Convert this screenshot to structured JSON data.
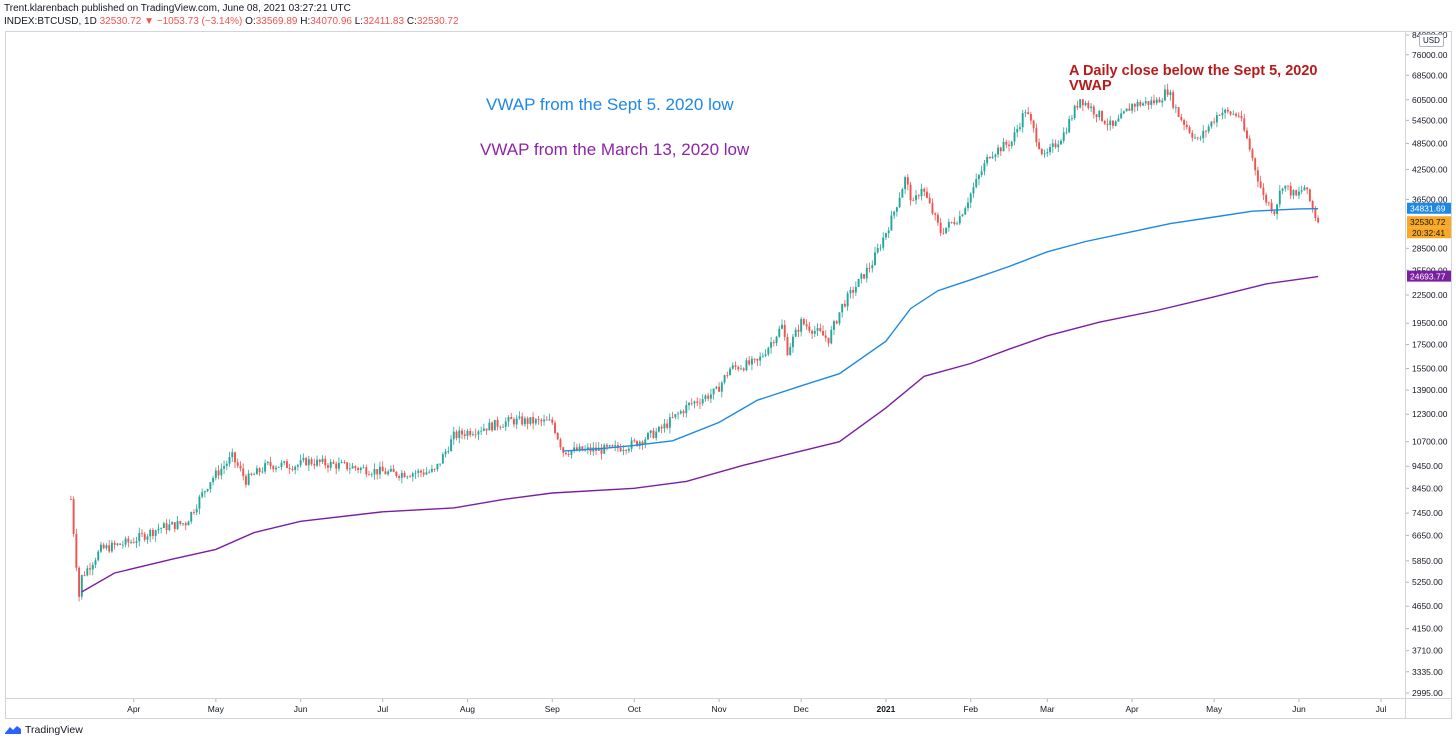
{
  "header": {
    "line1": "Trent.klarenbach published on TradingView.com, June 08, 2021 03:27:21 UTC",
    "symbol": "INDEX:BTCUSD, 1D",
    "last": "32530.72",
    "change": "−1053.73 (−3.14%)",
    "open_label": "O:",
    "open": "33569.89",
    "high_label": "H:",
    "high": "34070.96",
    "low_label": "L:",
    "low": "32411.83",
    "close_label": "C:",
    "close": "32530.72"
  },
  "footer": {
    "brand": "TradingView"
  },
  "currency_badge": "USD",
  "colors": {
    "up": "#26a69a",
    "down": "#ef5350",
    "vwap_sept": "#1e88e5",
    "vwap_march": "#7b1fa2",
    "annot_blue": "#1e88e5",
    "annot_purple": "#8e24aa",
    "annot_red": "#b71c1c",
    "last_price_bg": "#f9a825"
  },
  "chart_data": {
    "type": "candlestick",
    "scale": "log",
    "title": "",
    "ylim": [
      2995,
      84000
    ],
    "x_ticks": [
      "Apr",
      "May",
      "Jun",
      "Jul",
      "Aug",
      "Sep",
      "Oct",
      "Nov",
      "Dec",
      "2021",
      "Feb",
      "Mar",
      "Apr",
      "May",
      "Jun",
      "Jul"
    ],
    "y_ticks": [
      "84000.00",
      "76000.00",
      "68500.00",
      "60500.00",
      "54500.00",
      "48500.00",
      "42500.00",
      "36500.00",
      "28500.00",
      "25500.00",
      "22500.00",
      "19500.00",
      "17500.00",
      "15500.00",
      "13900.00",
      "12300.00",
      "10700.00",
      "9450.00",
      "8450.00",
      "7450.00",
      "6650.00",
      "5850.00",
      "5250.00",
      "4650.00",
      "4150.00",
      "3710.00",
      "3335.00",
      "2995.00"
    ],
    "price_labels": [
      {
        "value": 34831.69,
        "text": "34831.69",
        "color": "#1e88e5"
      },
      {
        "value": 32530.72,
        "text": "32530.72",
        "color": "#f9a825"
      },
      {
        "value": 24693.77,
        "text": "24693.77",
        "color": "#7b1fa2"
      }
    ],
    "countdown": "20:32:41",
    "close_path": [
      [
        "2020-03-09",
        8000
      ],
      [
        "2020-03-12",
        4900
      ],
      [
        "2020-03-13",
        5400
      ],
      [
        "2020-03-20",
        6200
      ],
      [
        "2020-03-31",
        6450
      ],
      [
        "2020-04-10",
        6900
      ],
      [
        "2020-04-20",
        7100
      ],
      [
        "2020-04-29",
        8800
      ],
      [
        "2020-05-07",
        9900
      ],
      [
        "2020-05-12",
        8800
      ],
      [
        "2020-05-20",
        9500
      ],
      [
        "2020-05-31",
        9500
      ],
      [
        "2020-06-03",
        9700
      ],
      [
        "2020-06-20",
        9400
      ],
      [
        "2020-07-05",
        9100
      ],
      [
        "2020-07-20",
        9200
      ],
      [
        "2020-07-27",
        11000
      ],
      [
        "2020-08-02",
        11300
      ],
      [
        "2020-08-17",
        11900
      ],
      [
        "2020-09-01",
        11800
      ],
      [
        "2020-09-05",
        10200
      ],
      [
        "2020-09-23",
        10300
      ],
      [
        "2020-10-01",
        10600
      ],
      [
        "2020-10-10",
        11300
      ],
      [
        "2020-10-21",
        12900
      ],
      [
        "2020-10-31",
        13800
      ],
      [
        "2020-11-05",
        15500
      ],
      [
        "2020-11-15",
        16000
      ],
      [
        "2020-11-24",
        19200
      ],
      [
        "2020-11-26",
        17000
      ],
      [
        "2020-12-01",
        19600
      ],
      [
        "2020-12-11",
        18000
      ],
      [
        "2020-12-16",
        21300
      ],
      [
        "2020-12-27",
        26500
      ],
      [
        "2021-01-03",
        33000
      ],
      [
        "2021-01-08",
        40500
      ],
      [
        "2021-01-11",
        35500
      ],
      [
        "2021-01-14",
        39000
      ],
      [
        "2021-01-21",
        31000
      ],
      [
        "2021-01-28",
        33500
      ],
      [
        "2021-02-08",
        46000
      ],
      [
        "2021-02-16",
        49000
      ],
      [
        "2021-02-21",
        57500
      ],
      [
        "2021-02-28",
        45000
      ],
      [
        "2021-03-07",
        51000
      ],
      [
        "2021-03-13",
        61000
      ],
      [
        "2021-03-25",
        52500
      ],
      [
        "2021-04-01",
        59000
      ],
      [
        "2021-04-10",
        60000
      ],
      [
        "2021-04-14",
        63500
      ],
      [
        "2021-04-18",
        56000
      ],
      [
        "2021-04-25",
        49000
      ],
      [
        "2021-05-03",
        57000
      ],
      [
        "2021-05-10",
        56000
      ],
      [
        "2021-05-13",
        49500
      ],
      [
        "2021-05-19",
        37000
      ],
      [
        "2021-05-23",
        34500
      ],
      [
        "2021-05-26",
        39500
      ],
      [
        "2021-05-31",
        37000
      ],
      [
        "2021-06-03",
        38900
      ],
      [
        "2021-06-07",
        33600
      ],
      [
        "2021-06-08",
        32530
      ]
    ],
    "series": [
      {
        "name": "VWAP from the Sept 5. 2020 low",
        "color": "#1e88e5",
        "points": [
          [
            "2020-09-05",
            10200
          ],
          [
            "2020-09-20",
            10350
          ],
          [
            "2020-10-01",
            10500
          ],
          [
            "2020-10-15",
            10750
          ],
          [
            "2020-11-01",
            11800
          ],
          [
            "2020-11-15",
            13200
          ],
          [
            "2020-12-01",
            14200
          ],
          [
            "2020-12-15",
            15100
          ],
          [
            "2021-01-01",
            17800
          ],
          [
            "2021-01-10",
            21000
          ],
          [
            "2021-01-20",
            23000
          ],
          [
            "2021-02-01",
            24300
          ],
          [
            "2021-02-15",
            26000
          ],
          [
            "2021-03-01",
            28000
          ],
          [
            "2021-03-15",
            29500
          ],
          [
            "2021-04-01",
            31000
          ],
          [
            "2021-04-15",
            32300
          ],
          [
            "2021-05-01",
            33400
          ],
          [
            "2021-05-15",
            34400
          ],
          [
            "2021-06-01",
            34800
          ],
          [
            "2021-06-08",
            34831.69
          ]
        ]
      },
      {
        "name": "VWAP from the March 13, 2020 low",
        "color": "#7b1fa2",
        "points": [
          [
            "2020-03-13",
            5000
          ],
          [
            "2020-03-25",
            5500
          ],
          [
            "2020-04-15",
            5900
          ],
          [
            "2020-05-01",
            6200
          ],
          [
            "2020-05-15",
            6750
          ],
          [
            "2020-06-01",
            7150
          ],
          [
            "2020-07-01",
            7500
          ],
          [
            "2020-07-27",
            7650
          ],
          [
            "2020-08-15",
            8000
          ],
          [
            "2020-09-01",
            8250
          ],
          [
            "2020-10-01",
            8450
          ],
          [
            "2020-10-20",
            8750
          ],
          [
            "2020-11-10",
            9500
          ],
          [
            "2020-12-01",
            10200
          ],
          [
            "2020-12-15",
            10700
          ],
          [
            "2021-01-01",
            12700
          ],
          [
            "2021-01-15",
            14900
          ],
          [
            "2021-02-01",
            15900
          ],
          [
            "2021-02-15",
            17100
          ],
          [
            "2021-03-01",
            18300
          ],
          [
            "2021-03-20",
            19600
          ],
          [
            "2021-04-10",
            20800
          ],
          [
            "2021-05-01",
            22300
          ],
          [
            "2021-05-20",
            23800
          ],
          [
            "2021-06-08",
            24693.77
          ]
        ]
      }
    ],
    "annotations": [
      {
        "text": "VWAP from the Sept 5. 2020 low",
        "color": "#1e88e5"
      },
      {
        "text": "VWAP from the March 13, 2020 low",
        "color": "#8e24aa"
      },
      {
        "text": "A Daily close below the Sept 5, 2020 VWAP",
        "color": "#b71c1c"
      }
    ]
  }
}
